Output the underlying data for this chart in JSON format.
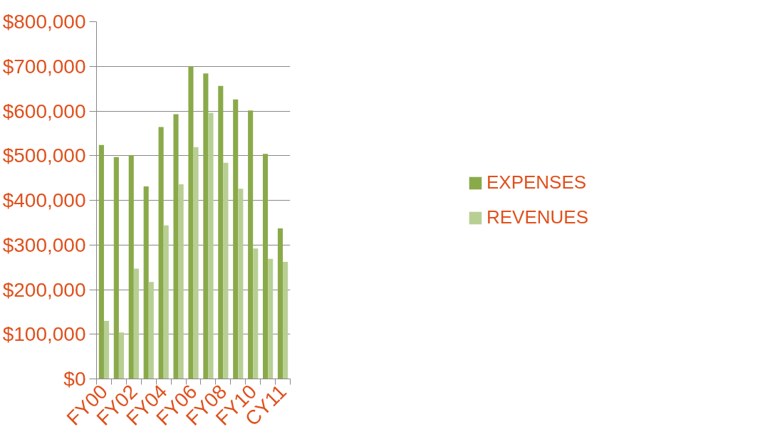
{
  "chart_data": {
    "type": "bar",
    "categories": [
      "FY00",
      null,
      "FY02",
      null,
      "FY04",
      null,
      "FY06",
      null,
      "FY08",
      null,
      "FY10",
      null,
      "CY11"
    ],
    "series": [
      {
        "name": "EXPENSES",
        "color": "#8aaa4a",
        "values": [
          524000,
          497000,
          501000,
          431000,
          564000,
          593000,
          700000,
          684000,
          656000,
          626000,
          601000,
          504000,
          337000
        ]
      },
      {
        "name": "REVENUES",
        "color": "#b8cf94",
        "values": [
          130000,
          104000,
          247000,
          217000,
          344000,
          436000,
          519000,
          596000,
          484000,
          426000,
          292000,
          269000,
          262000
        ]
      }
    ],
    "ylim": [
      0,
      800000
    ],
    "yticks": [
      {
        "value": 0,
        "label": "$0"
      },
      {
        "value": 100000,
        "label": "$100,000"
      },
      {
        "value": 200000,
        "label": "$200,000"
      },
      {
        "value": 300000,
        "label": "$300,000"
      },
      {
        "value": 400000,
        "label": "$400,000"
      },
      {
        "value": 500000,
        "label": "$500,000"
      },
      {
        "value": 600000,
        "label": "$600,000"
      },
      {
        "value": 700000,
        "label": "$700,000"
      },
      {
        "value": 800000,
        "label": "$800,000"
      }
    ],
    "grid": "y",
    "legend": "right"
  }
}
